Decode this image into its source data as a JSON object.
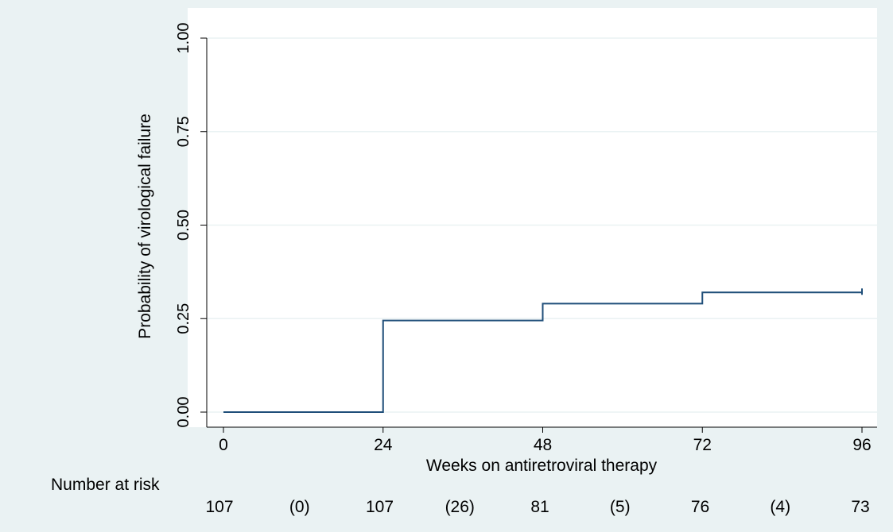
{
  "chart_data": {
    "type": "line",
    "step": true,
    "xlabel": "Weeks on antiretroviral therapy",
    "ylabel": "Probability of virological failure",
    "xlim": [
      0,
      96
    ],
    "ylim": [
      0,
      1
    ],
    "xticks": [
      0,
      24,
      48,
      72,
      96
    ],
    "xtick_labels": [
      "0",
      "24",
      "48",
      "72",
      "96"
    ],
    "yticks": [
      0,
      0.25,
      0.5,
      0.75,
      1
    ],
    "ytick_labels": [
      "0.00",
      "0.25",
      "0.50",
      "0.75",
      "1.00"
    ],
    "grid": true,
    "series": [
      {
        "x": [
          0,
          24,
          24,
          48,
          48,
          72,
          72,
          96
        ],
        "y": [
          0,
          0,
          0.245,
          0.245,
          0.29,
          0.29,
          0.32,
          0.32
        ],
        "color": "#1f4e79"
      }
    ],
    "risk_table": {
      "label": "Number at risk",
      "values": [
        "107",
        "(0)",
        "107",
        "(26)",
        "81",
        "(5)",
        "76",
        "(4)",
        "73"
      ]
    }
  },
  "colors": {
    "background": "#eaf2f3",
    "plot_area": "#ffffff",
    "grid": "#eaf2f3",
    "line": "#1f4e79"
  }
}
